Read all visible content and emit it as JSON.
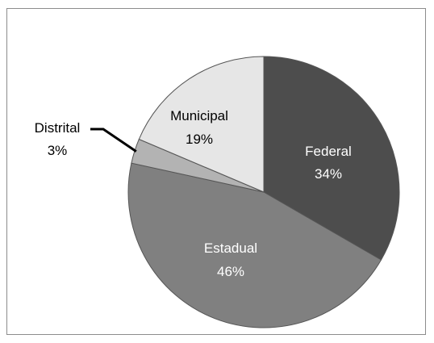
{
  "chart_data": {
    "type": "pie",
    "slices": [
      {
        "label": "Federal",
        "value": 34,
        "value_text": "34%",
        "color": "#4d4d4d",
        "label_color": "#ffffff"
      },
      {
        "label": "Estadual",
        "value": 46,
        "value_text": "46%",
        "color": "#808080",
        "label_color": "#ffffff"
      },
      {
        "label": "Distrital",
        "value": 3,
        "value_text": "3%",
        "color": "#b3b3b3",
        "label_color": "#000000"
      },
      {
        "label": "Municipal",
        "value": 19,
        "value_text": "19%",
        "color": "#e6e6e6",
        "label_color": "#000000"
      }
    ],
    "start_angle": "12 o'clock",
    "direction": "clockwise",
    "edge_color": "#555555",
    "leader_color": "#000000"
  }
}
